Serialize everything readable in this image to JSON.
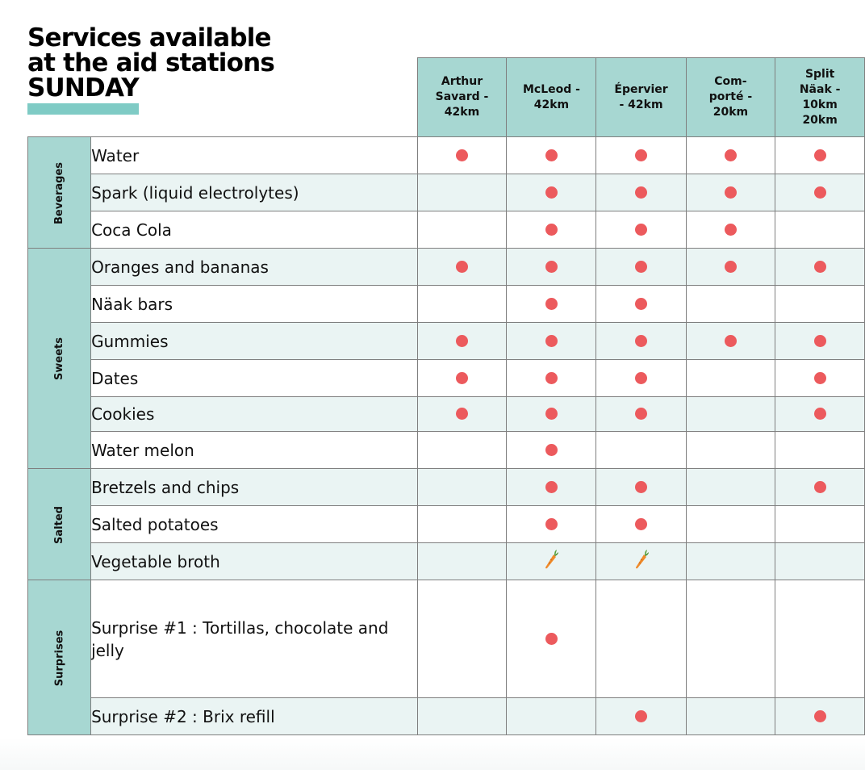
{
  "title": {
    "line1": "Services available",
    "line2": "at the aid stations",
    "line3": "SUNDAY"
  },
  "colors": {
    "header_bg": "#a7d7d2",
    "category_bg": "#a7d7d2",
    "row_alt_bg": "#eaf4f3",
    "dot": "#ec5a5d",
    "title_accent": "#7fcbc5",
    "border": "#7f7f7f"
  },
  "stations": [
    "Arthur\nSavard -\n42km",
    "McLeod -\n42km",
    "Épervier\n- 42km",
    "Com-\nporté -\n20km",
    "Split\nNäak -\n10km\n20km"
  ],
  "categories": [
    {
      "name": "Beverages",
      "items": [
        {
          "label": "Water",
          "marks": [
            "dot",
            "dot",
            "dot",
            "dot",
            "dot"
          ],
          "height": 46
        },
        {
          "label": "Spark (liquid electrolytes)",
          "marks": [
            "",
            "dot",
            "dot",
            "dot",
            "dot"
          ],
          "height": 46
        },
        {
          "label": "Coca Cola",
          "marks": [
            "",
            "dot",
            "dot",
            "dot",
            ""
          ],
          "height": 46
        }
      ]
    },
    {
      "name": "Sweets",
      "items": [
        {
          "label": "Oranges and bananas",
          "marks": [
            "dot",
            "dot",
            "dot",
            "dot",
            "dot"
          ],
          "height": 46
        },
        {
          "label": "Näak bars",
          "marks": [
            "",
            "dot",
            "dot",
            "",
            ""
          ],
          "height": 46
        },
        {
          "label": "Gummies",
          "marks": [
            "dot",
            "dot",
            "dot",
            "dot",
            "dot"
          ],
          "height": 46
        },
        {
          "label": "Dates",
          "marks": [
            "dot",
            "dot",
            "dot",
            "",
            "dot"
          ],
          "height": 46
        },
        {
          "label": "Cookies",
          "marks": [
            "dot",
            "dot",
            "dot",
            "",
            "dot"
          ],
          "height": 43
        },
        {
          "label": "Water melon",
          "marks": [
            "",
            "dot",
            "",
            "",
            ""
          ],
          "height": 46
        }
      ]
    },
    {
      "name": "Salted",
      "items": [
        {
          "label": "Bretzels and chips",
          "marks": [
            "",
            "dot",
            "dot",
            "",
            "dot"
          ],
          "height": 46
        },
        {
          "label": "Salted potatoes",
          "marks": [
            "",
            "dot",
            "dot",
            "",
            ""
          ],
          "height": 46
        },
        {
          "label": "Vegetable broth",
          "marks": [
            "",
            "carrot",
            "carrot",
            "",
            ""
          ],
          "height": 46
        }
      ]
    },
    {
      "name": "Surprises",
      "items": [
        {
          "label": "Surprise #1 : Tortillas, chocolate and jelly",
          "marks": [
            "",
            "dot",
            "",
            "",
            ""
          ],
          "height": 146
        },
        {
          "label": "Surprise #2 : Brix refill",
          "marks": [
            "",
            "",
            "dot",
            "",
            "dot"
          ],
          "height": 46
        }
      ]
    }
  ]
}
